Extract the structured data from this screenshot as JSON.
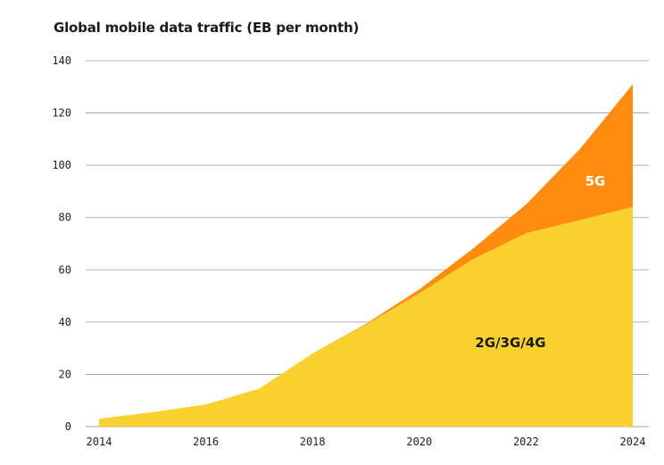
{
  "chart_data": {
    "type": "area",
    "title": "Global mobile data traffic (EB per month)",
    "x": [
      2014,
      2015,
      2016,
      2017,
      2018,
      2019,
      2020,
      2021,
      2022,
      2023,
      2024
    ],
    "series": [
      {
        "name": "2G/3G/4G",
        "color": "#f9d12f",
        "values": [
          3,
          5.5,
          8.5,
          14.5,
          28,
          39,
          51,
          64,
          74,
          79,
          84
        ]
      },
      {
        "name": "5G",
        "color": "#ff8c0f",
        "values": [
          0,
          0,
          0,
          0,
          0,
          0.3,
          1.5,
          4,
          11,
          27,
          47
        ]
      }
    ],
    "stacked": true,
    "ylim": [
      0,
      140
    ],
    "yticks": [
      0,
      20,
      40,
      60,
      80,
      100,
      120,
      140
    ],
    "xticks": [
      2014,
      2016,
      2018,
      2020,
      2022,
      2024
    ],
    "grid": true
  }
}
